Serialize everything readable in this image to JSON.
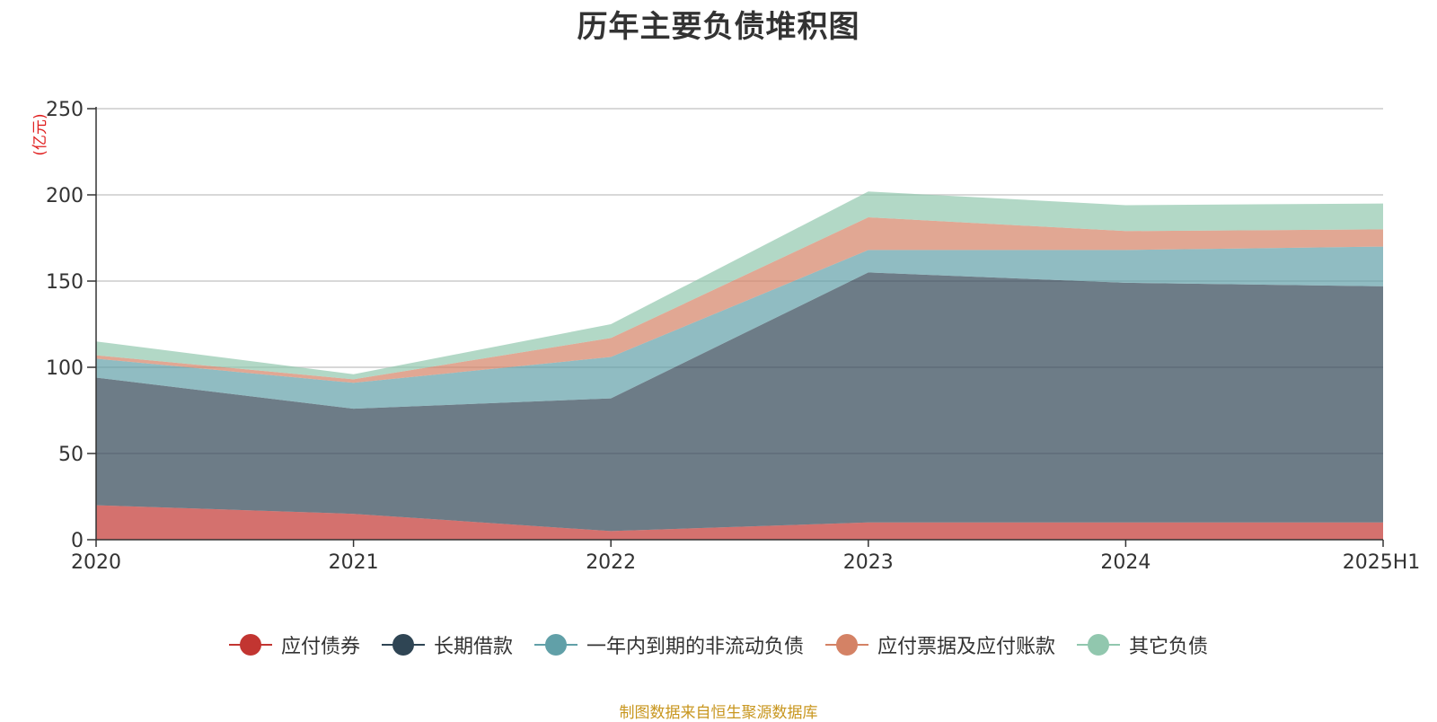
{
  "title": "历年主要负债堆积图",
  "source": "制图数据来自恒生聚源数据库",
  "chart_data": {
    "type": "area",
    "stacked": true,
    "title": "历年主要负债堆积图",
    "unit": "(亿元)",
    "categories": [
      "2020",
      "2021",
      "2022",
      "2023",
      "2024",
      "2025H1"
    ],
    "y_ticks": [
      0,
      50,
      100,
      150,
      200,
      250
    ],
    "ylim": [
      0,
      250
    ],
    "grid": true,
    "legend_position": "bottom",
    "series": [
      {
        "name": "应付债券",
        "color": "#c23531",
        "values": [
          20,
          15,
          5,
          10,
          10,
          10
        ]
      },
      {
        "name": "长期借款",
        "color": "#2f4554",
        "values": [
          74,
          61,
          77,
          145,
          139,
          137
        ]
      },
      {
        "name": "一年内到期的非流动负债",
        "color": "#61a0a8",
        "values": [
          11,
          15,
          24,
          13,
          19,
          23
        ]
      },
      {
        "name": "应付票据及应付账款",
        "color": "#d48265",
        "values": [
          2,
          2,
          11,
          19,
          11,
          10
        ]
      },
      {
        "name": "其它负债",
        "color": "#91c7ae",
        "values": [
          8,
          3,
          8,
          15,
          15,
          15
        ]
      }
    ]
  }
}
